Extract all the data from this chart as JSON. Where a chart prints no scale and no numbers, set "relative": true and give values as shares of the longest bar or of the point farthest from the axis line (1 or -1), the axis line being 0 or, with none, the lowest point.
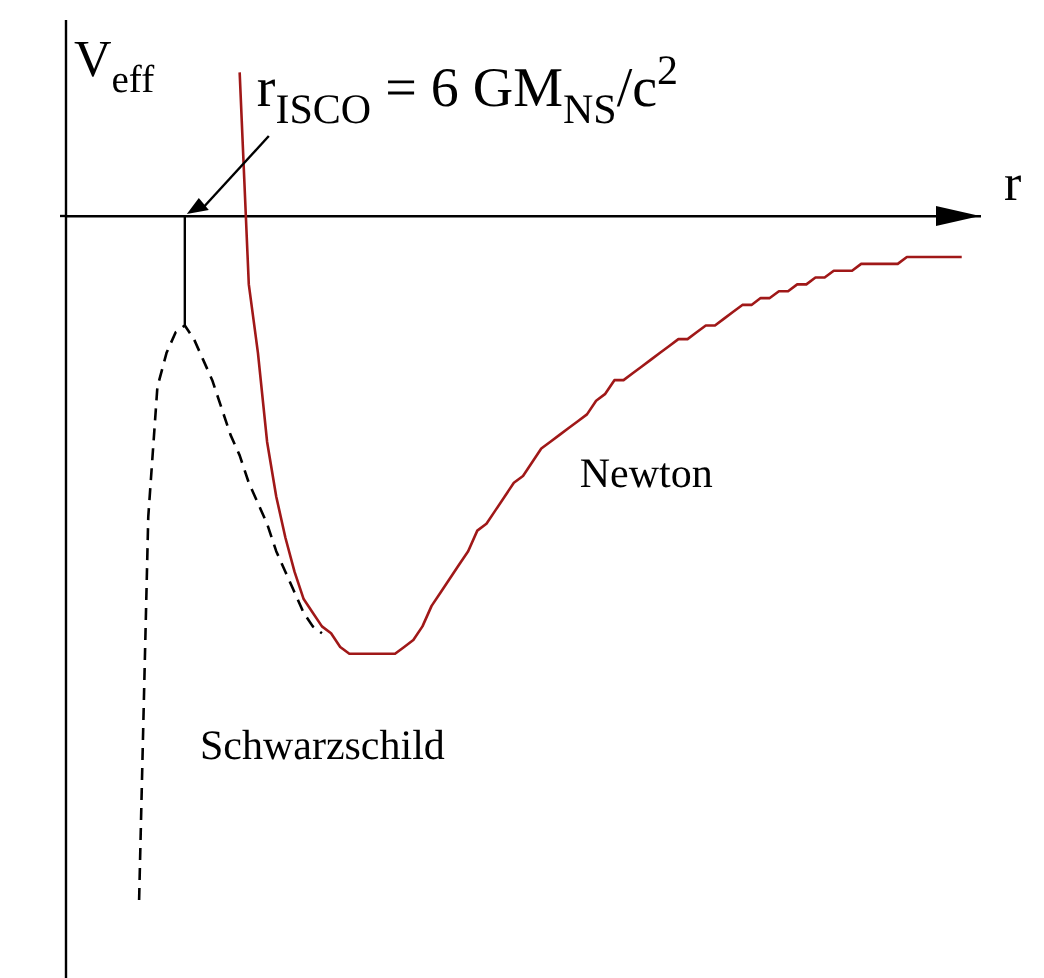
{
  "chart_data": {
    "type": "line",
    "relative": true,
    "xlabel": "r",
    "ylabel": "V$_{eff}$",
    "legend": false,
    "marker": "none",
    "annotations": [
      "r$_{ISCO}$ = 6 GM$_{NS}$/c$^{2}$"
    ],
    "categories": [
      null,
      null,
      null,
      null,
      null,
      null,
      null,
      null,
      null,
      null,
      null,
      null,
      null,
      null,
      null,
      null,
      null,
      null,
      null,
      null,
      null,
      null,
      null,
      null,
      null,
      null,
      null,
      null,
      null,
      null,
      null,
      null,
      null,
      null,
      null,
      null,
      null,
      null,
      null,
      null,
      null,
      null,
      null,
      null,
      null,
      null,
      null,
      null,
      null,
      null,
      null,
      null,
      null,
      null,
      null,
      null,
      null,
      null,
      null,
      null,
      null,
      null,
      null,
      null,
      null,
      null,
      null,
      null,
      null,
      null,
      null,
      null,
      null,
      null,
      null,
      null,
      null,
      null,
      null,
      null,
      null,
      null,
      null,
      null,
      null,
      null,
      null,
      null,
      null,
      null,
      null,
      null,
      null,
      null,
      null,
      null,
      null,
      null,
      null,
      null,
      null
    ],
    "series": [
      {
        "name": "Newton",
        "color": "#a01818",
        "line_style": "solid",
        "values": [
          null,
          null,
          null,
          null,
          null,
          null,
          null,
          null,
          null,
          null,
          null,
          null,
          null,
          null,
          null,
          null,
          null,
          null,
          null,
          0.21,
          -0.1,
          -0.2,
          -0.33,
          -0.41,
          -0.47,
          -0.52,
          -0.56,
          -0.58,
          -0.6,
          -0.61,
          -0.63,
          -0.64,
          -0.64,
          -0.64,
          -0.64,
          -0.64,
          -0.64,
          -0.63,
          -0.62,
          -0.6,
          -0.57,
          -0.55,
          -0.53,
          -0.51,
          -0.49,
          -0.46,
          -0.45,
          -0.43,
          -0.41,
          -0.39,
          -0.38,
          -0.36,
          -0.34,
          -0.33,
          -0.32,
          -0.31,
          -0.3,
          -0.29,
          -0.27,
          -0.26,
          -0.24,
          -0.24,
          -0.23,
          -0.22,
          -0.21,
          -0.2,
          -0.19,
          -0.18,
          -0.18,
          -0.17,
          -0.16,
          -0.16,
          -0.15,
          -0.14,
          -0.13,
          -0.13,
          -0.12,
          -0.12,
          -0.11,
          -0.11,
          -0.1,
          -0.1,
          -0.09,
          -0.09,
          -0.08,
          -0.08,
          -0.08,
          -0.07,
          -0.07,
          -0.07,
          -0.07,
          -0.07,
          -0.06,
          -0.06,
          -0.06,
          -0.06,
          -0.06,
          -0.06,
          -0.06,
          null,
          null
        ]
      },
      {
        "name": "Schwarzschild",
        "color": "#000000",
        "line_style": "dashed",
        "values": [
          null,
          null,
          null,
          null,
          null,
          null,
          null,
          null,
          -1,
          -0.44,
          -0.25,
          -0.2,
          -0.17,
          -0.16,
          -0.18,
          -0.21,
          -0.24,
          -0.28,
          -0.32,
          -0.35,
          -0.39,
          -0.42,
          -0.45,
          -0.49,
          -0.52,
          -0.55,
          -0.58,
          -0.6,
          -0.61,
          null,
          null,
          null,
          null,
          null,
          null,
          null,
          null,
          null,
          null,
          null,
          null,
          null,
          null,
          null,
          null,
          null,
          null,
          null,
          null,
          null,
          null,
          null,
          null,
          null,
          null,
          null,
          null,
          null,
          null,
          null,
          null,
          null,
          null,
          null,
          null,
          null,
          null,
          null,
          null,
          null,
          null,
          null,
          null,
          null,
          null,
          null,
          null,
          null,
          null,
          null,
          null,
          null,
          null,
          null,
          null,
          null,
          null,
          null,
          null,
          null,
          null,
          null,
          null,
          null,
          null,
          null,
          null,
          null,
          null,
          null,
          null
        ]
      }
    ]
  }
}
